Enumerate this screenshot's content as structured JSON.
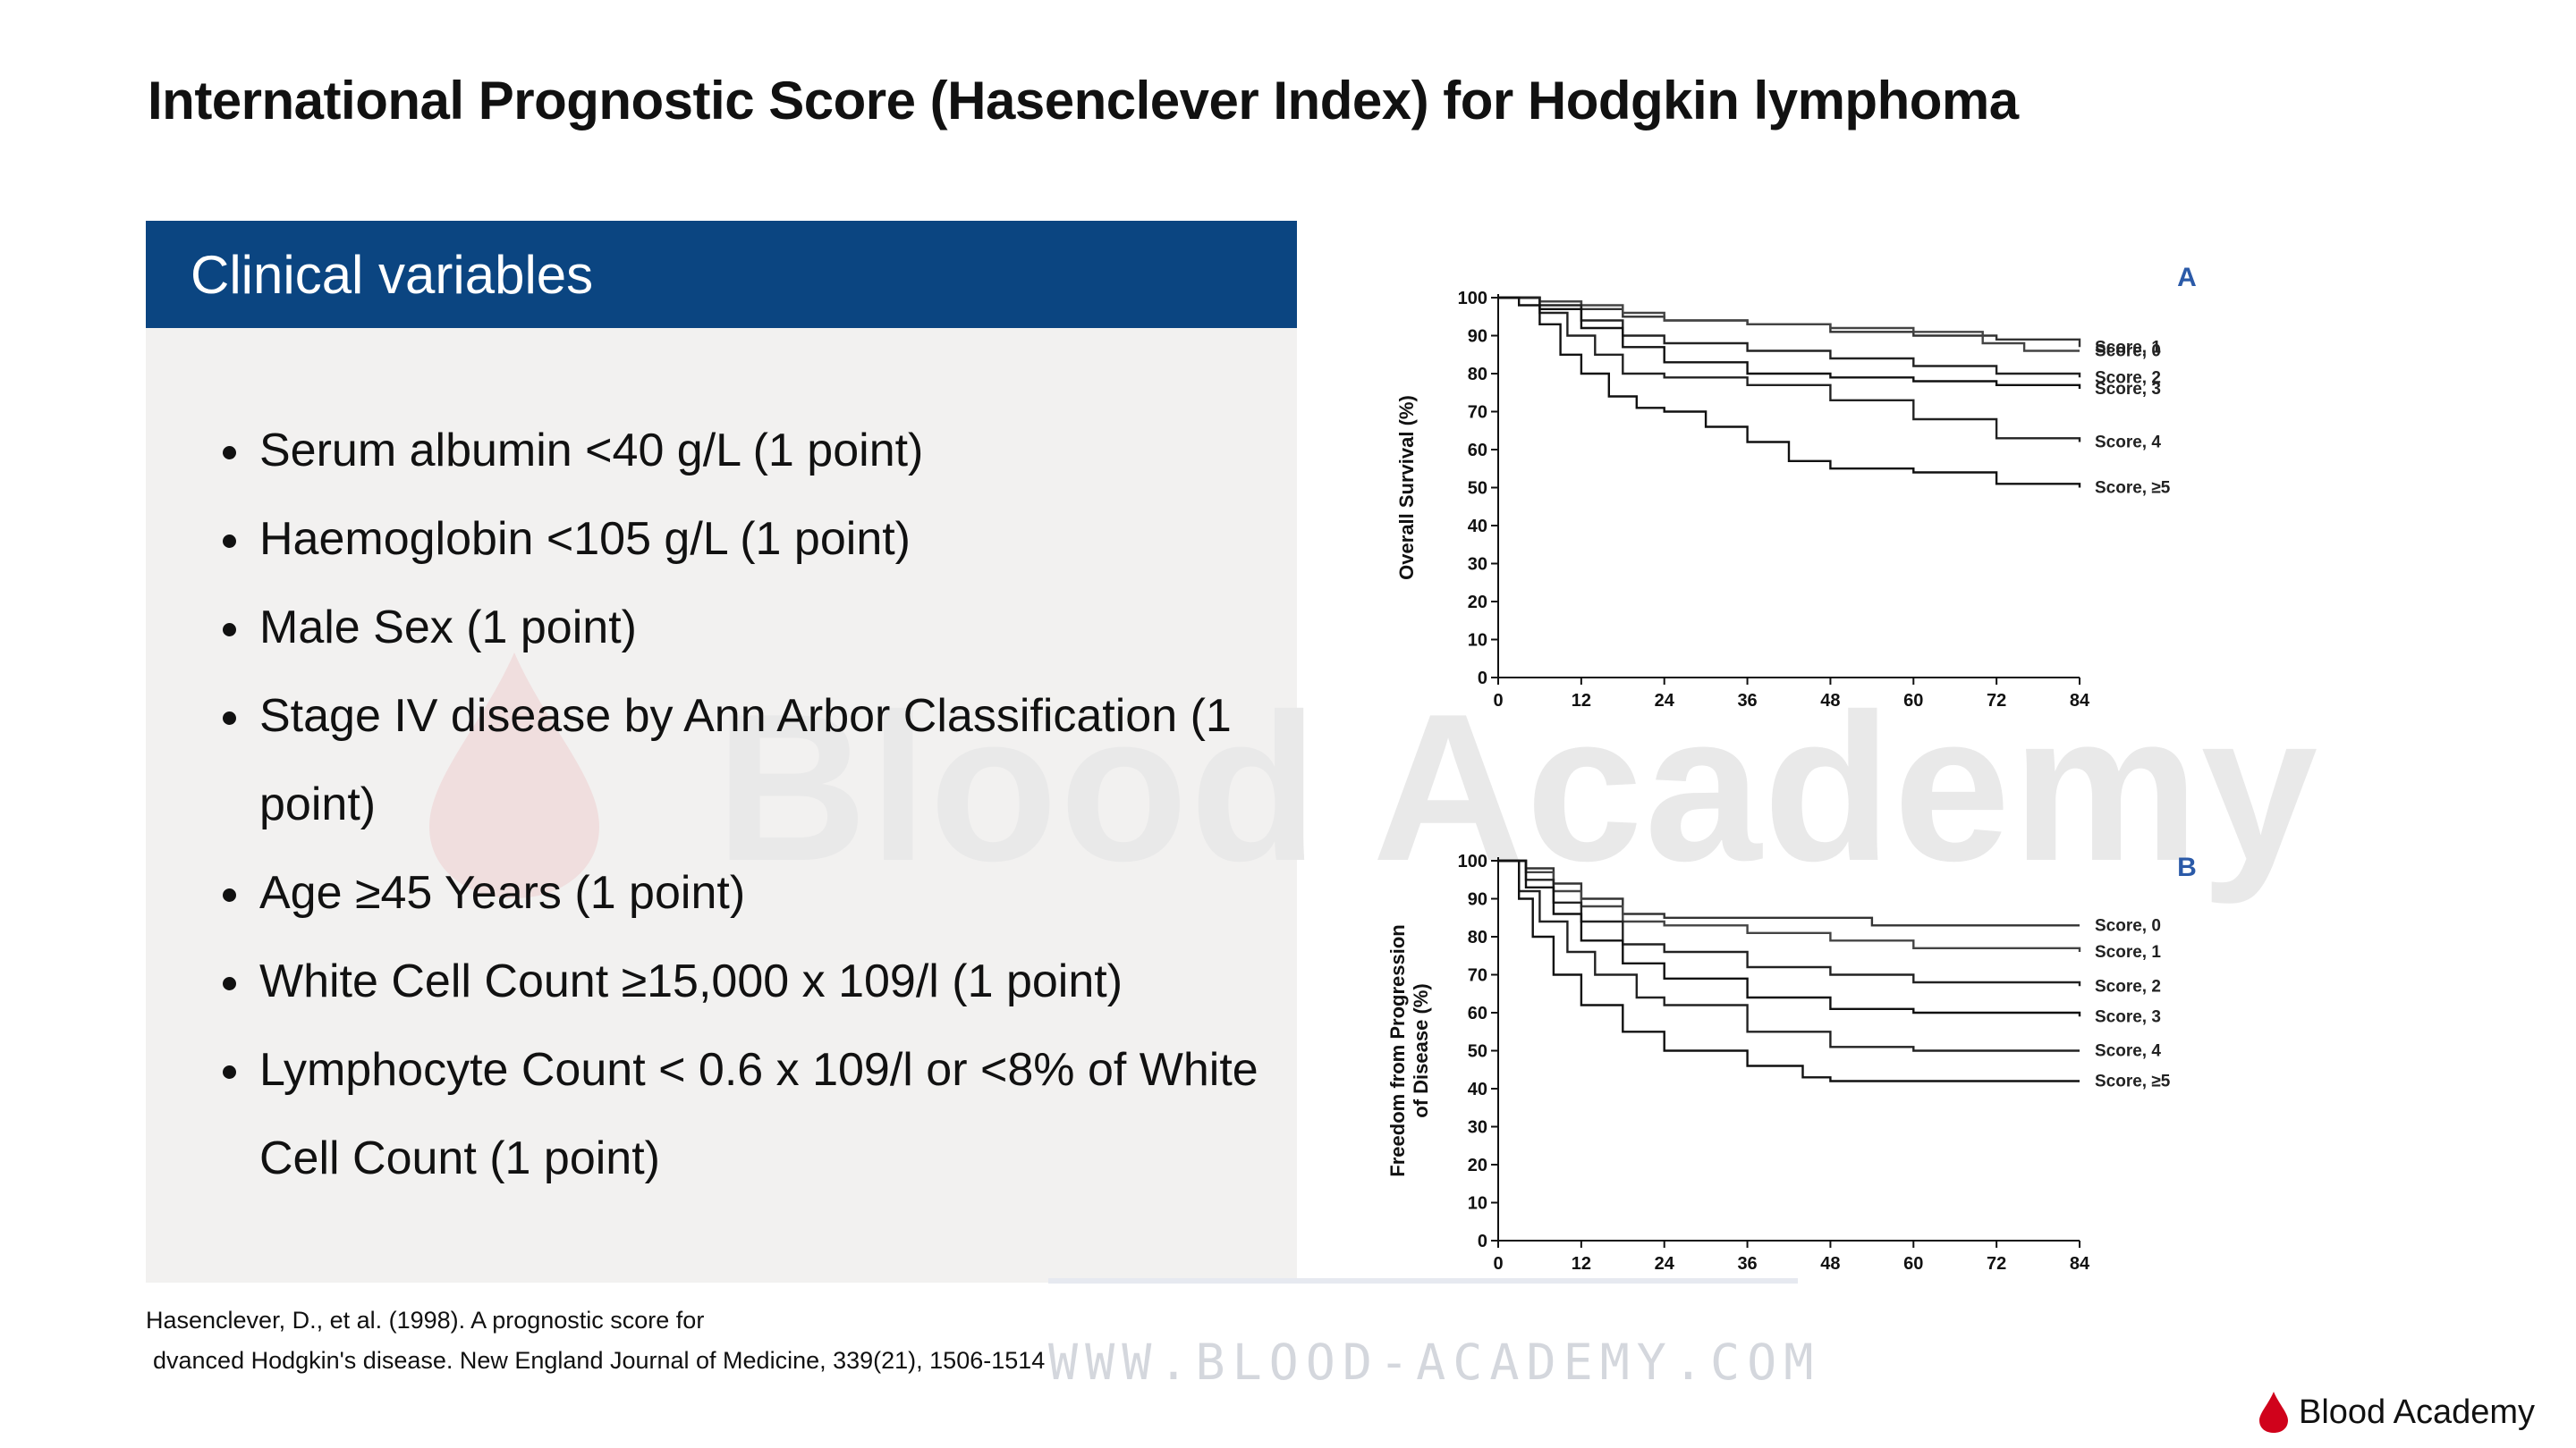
{
  "title": "International Prognostic Score (Hasenclever Index) for Hodgkin lymphoma",
  "panel": {
    "header": "Clinical variables",
    "items": [
      "Serum albumin <40 g/L (1 point)",
      "Haemoglobin <105 g/L (1 point)",
      "Male Sex (1 point)",
      "Stage IV disease by Ann Arbor Classification (1 point)",
      "Age ≥45 Years (1 point)",
      "White Cell Count ≥15,000 x 109/l (1 point)",
      "Lymphocyte Count < 0.6  x 109/l or <8% of White Cell Count (1 point)"
    ]
  },
  "citation": {
    "line1": "Hasenclever, D., et al. (1998). A prognostic score for",
    "line2": "dvanced Hodgkin's disease. New England Journal of Medicine, 339(21), 1506-1514"
  },
  "watermark": {
    "text": "Blood Academy",
    "site": "WWW.BLOOD-ACADEMY.COM"
  },
  "brand": {
    "name": "Blood Academy",
    "drop_color": "#d0021b"
  },
  "colors": {
    "header_bg": "#0b4581",
    "panel_bg": "#f2f1f0",
    "panel_letter_color": "#2b5aa8"
  },
  "chart_data": [
    {
      "type": "line",
      "panel_letter": "A",
      "ylabel": "Overall Survival (%)",
      "xlabel": "",
      "xticks": [
        0,
        12,
        24,
        36,
        48,
        60,
        72,
        84
      ],
      "yticks": [
        0,
        10,
        20,
        30,
        40,
        50,
        60,
        70,
        80,
        90,
        100
      ],
      "xlim": [
        0,
        84
      ],
      "ylim": [
        0,
        100
      ],
      "series": [
        {
          "name": "Score, 1",
          "points": [
            [
              0,
              100
            ],
            [
              6,
              99
            ],
            [
              12,
              97
            ],
            [
              18,
              95
            ],
            [
              24,
              94
            ],
            [
              36,
              93
            ],
            [
              48,
              91
            ],
            [
              60,
              90
            ],
            [
              72,
              89
            ],
            [
              84,
              87
            ]
          ]
        },
        {
          "name": "Score, 0",
          "points": [
            [
              0,
              100
            ],
            [
              6,
              99
            ],
            [
              12,
              98
            ],
            [
              18,
              96
            ],
            [
              24,
              94
            ],
            [
              36,
              93
            ],
            [
              48,
              92
            ],
            [
              60,
              91
            ],
            [
              70,
              88
            ],
            [
              76,
              86
            ],
            [
              84,
              86
            ]
          ]
        },
        {
          "name": "Score, 2",
          "points": [
            [
              0,
              100
            ],
            [
              6,
              98
            ],
            [
              12,
              94
            ],
            [
              18,
              90
            ],
            [
              24,
              88
            ],
            [
              36,
              86
            ],
            [
              48,
              84
            ],
            [
              60,
              82
            ],
            [
              72,
              80
            ],
            [
              84,
              79
            ]
          ]
        },
        {
          "name": "Score, 3",
          "points": [
            [
              0,
              100
            ],
            [
              6,
              97
            ],
            [
              12,
              92
            ],
            [
              18,
              87
            ],
            [
              24,
              83
            ],
            [
              36,
              80
            ],
            [
              48,
              79
            ],
            [
              60,
              78
            ],
            [
              72,
              77
            ],
            [
              84,
              76
            ]
          ]
        },
        {
          "name": "Score, 4",
          "points": [
            [
              0,
              100
            ],
            [
              6,
              96
            ],
            [
              10,
              90
            ],
            [
              14,
              85
            ],
            [
              18,
              80
            ],
            [
              24,
              79
            ],
            [
              36,
              77
            ],
            [
              48,
              73
            ],
            [
              60,
              68
            ],
            [
              72,
              63
            ],
            [
              84,
              62
            ]
          ]
        },
        {
          "name": "Score, ≥5",
          "points": [
            [
              0,
              100
            ],
            [
              3,
              98
            ],
            [
              6,
              93
            ],
            [
              9,
              85
            ],
            [
              12,
              80
            ],
            [
              16,
              74
            ],
            [
              20,
              71
            ],
            [
              24,
              70
            ],
            [
              30,
              66
            ],
            [
              36,
              62
            ],
            [
              42,
              57
            ],
            [
              48,
              55
            ],
            [
              60,
              54
            ],
            [
              72,
              51
            ],
            [
              84,
              50
            ]
          ]
        }
      ]
    },
    {
      "type": "line",
      "panel_letter": "B",
      "ylabel": "Freedom from Progression of Disease (%)",
      "xlabel": "",
      "xticks": [
        0,
        12,
        24,
        36,
        48,
        60,
        72,
        84
      ],
      "yticks": [
        0,
        10,
        20,
        30,
        40,
        50,
        60,
        70,
        80,
        90,
        100
      ],
      "xlim": [
        0,
        84
      ],
      "ylim": [
        0,
        100
      ],
      "series": [
        {
          "name": "Score, 0",
          "points": [
            [
              0,
              100
            ],
            [
              4,
              98
            ],
            [
              8,
              94
            ],
            [
              12,
              90
            ],
            [
              18,
              86
            ],
            [
              24,
              85
            ],
            [
              36,
              85
            ],
            [
              48,
              85
            ],
            [
              54,
              83
            ],
            [
              60,
              83
            ],
            [
              84,
              83
            ]
          ]
        },
        {
          "name": "Score, 1",
          "points": [
            [
              0,
              100
            ],
            [
              4,
              97
            ],
            [
              8,
              92
            ],
            [
              12,
              88
            ],
            [
              18,
              84
            ],
            [
              24,
              83
            ],
            [
              36,
              81
            ],
            [
              48,
              79
            ],
            [
              60,
              77
            ],
            [
              84,
              76
            ]
          ]
        },
        {
          "name": "Score, 2",
          "points": [
            [
              0,
              100
            ],
            [
              4,
              95
            ],
            [
              8,
              89
            ],
            [
              12,
              84
            ],
            [
              18,
              78
            ],
            [
              24,
              76
            ],
            [
              36,
              72
            ],
            [
              48,
              70
            ],
            [
              60,
              68
            ],
            [
              84,
              67
            ]
          ]
        },
        {
          "name": "Score, 3",
          "points": [
            [
              0,
              100
            ],
            [
              4,
              93
            ],
            [
              8,
              86
            ],
            [
              12,
              79
            ],
            [
              18,
              73
            ],
            [
              24,
              69
            ],
            [
              36,
              64
            ],
            [
              48,
              61
            ],
            [
              60,
              60
            ],
            [
              84,
              59
            ]
          ]
        },
        {
          "name": "Score, 4",
          "points": [
            [
              0,
              100
            ],
            [
              3,
              92
            ],
            [
              6,
              84
            ],
            [
              10,
              76
            ],
            [
              14,
              70
            ],
            [
              20,
              64
            ],
            [
              24,
              62
            ],
            [
              36,
              55
            ],
            [
              48,
              51
            ],
            [
              60,
              50
            ],
            [
              84,
              50
            ]
          ]
        },
        {
          "name": "Score, ≥5",
          "points": [
            [
              0,
              100
            ],
            [
              3,
              90
            ],
            [
              5,
              80
            ],
            [
              8,
              70
            ],
            [
              12,
              62
            ],
            [
              18,
              55
            ],
            [
              24,
              50
            ],
            [
              36,
              46
            ],
            [
              44,
              43
            ],
            [
              48,
              42
            ],
            [
              60,
              42
            ],
            [
              84,
              42
            ]
          ]
        }
      ]
    }
  ]
}
